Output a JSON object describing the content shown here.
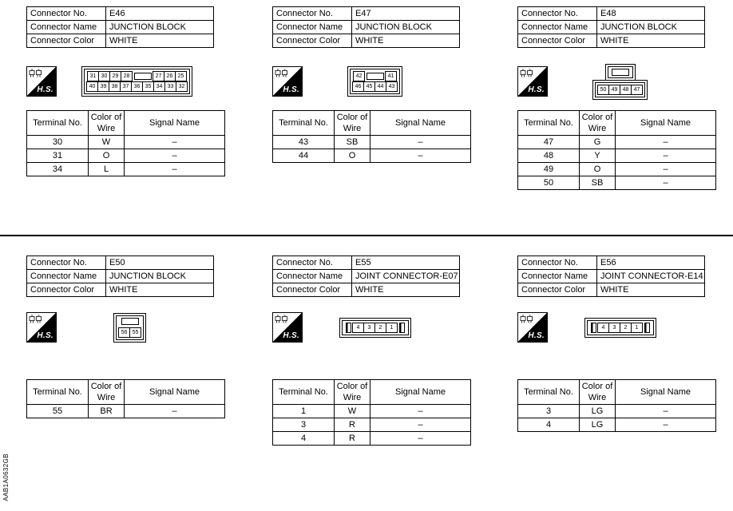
{
  "meta": {
    "doc_code": "AAB1A0632GB"
  },
  "labels": {
    "connector_no": "Connector No.",
    "connector_name": "Connector Name",
    "connector_color": "Connector Color",
    "terminal_no": "Terminal No.",
    "color_of_wire": "Color of Wire",
    "signal_name": "Signal Name",
    "hs": "H.S."
  },
  "connectors": [
    {
      "no": "E46",
      "name": "JUNCTION BLOCK",
      "color": "WHITE",
      "diagram": {
        "style": "grid",
        "rows": [
          [
            {
              "p": "31"
            },
            {
              "p": "30"
            },
            {
              "p": "29"
            },
            {
              "p": "28"
            },
            {
              "b": 2
            },
            {
              "p": "27"
            },
            {
              "p": "26"
            },
            {
              "p": "25"
            }
          ],
          [
            {
              "p": "40"
            },
            {
              "p": "39"
            },
            {
              "p": "38"
            },
            {
              "p": "37"
            },
            {
              "p": "36"
            },
            {
              "p": "35"
            },
            {
              "p": "34"
            },
            {
              "p": "33"
            },
            {
              "p": "32"
            }
          ]
        ]
      },
      "terminals": [
        [
          "30",
          "W",
          "–"
        ],
        [
          "31",
          "O",
          "–"
        ],
        [
          "34",
          "L",
          "–"
        ]
      ]
    },
    {
      "no": "E47",
      "name": "JUNCTION BLOCK",
      "color": "WHITE",
      "diagram": {
        "style": "grid",
        "rows": [
          [
            {
              "p": "42"
            },
            {
              "b": 2
            },
            {
              "p": "41"
            }
          ],
          [
            {
              "p": "46"
            },
            {
              "p": "45"
            },
            {
              "p": "44"
            },
            {
              "p": "43"
            }
          ]
        ]
      },
      "terminals": [
        [
          "43",
          "SB",
          "–"
        ],
        [
          "44",
          "O",
          "–"
        ]
      ]
    },
    {
      "no": "E48",
      "name": "JUNCTION BLOCK",
      "color": "WHITE",
      "diagram": {
        "style": "tab",
        "rows": [
          [
            {
              "b": 2
            }
          ],
          [
            {
              "p": "50"
            },
            {
              "p": "49"
            },
            {
              "p": "48"
            },
            {
              "p": "47"
            }
          ]
        ]
      },
      "terminals": [
        [
          "47",
          "G",
          "–"
        ],
        [
          "48",
          "Y",
          "–"
        ],
        [
          "49",
          "O",
          "–"
        ],
        [
          "50",
          "SB",
          "–"
        ]
      ]
    },
    {
      "no": "E50",
      "name": "JUNCTION BLOCK",
      "color": "WHITE",
      "diagram": {
        "style": "square",
        "rows": [
          [
            {
              "b": 2
            }
          ],
          [
            {
              "p": "56"
            },
            {
              "p": "55"
            }
          ]
        ]
      },
      "terminals": [
        [
          "55",
          "BR",
          "–"
        ]
      ]
    },
    {
      "no": "E55",
      "name": "JOINT CONNECTOR-E07",
      "color": "WHITE",
      "diagram": {
        "style": "strip",
        "rows": [
          [
            {
              "s": 1
            },
            {
              "p": "4"
            },
            {
              "p": "3"
            },
            {
              "p": "2"
            },
            {
              "p": "1"
            },
            {
              "s": 1
            }
          ]
        ]
      },
      "terminals": [
        [
          "1",
          "W",
          "–"
        ],
        [
          "3",
          "R",
          "–"
        ],
        [
          "4",
          "R",
          "–"
        ]
      ]
    },
    {
      "no": "E56",
      "name": "JOINT CONNECTOR-E14",
      "color": "WHITE",
      "diagram": {
        "style": "strip",
        "rows": [
          [
            {
              "s": 1
            },
            {
              "p": "4"
            },
            {
              "p": "3"
            },
            {
              "p": "2"
            },
            {
              "p": "1"
            },
            {
              "s": 1
            }
          ]
        ]
      },
      "terminals": [
        [
          "3",
          "LG",
          "–"
        ],
        [
          "4",
          "LG",
          "–"
        ]
      ]
    }
  ]
}
